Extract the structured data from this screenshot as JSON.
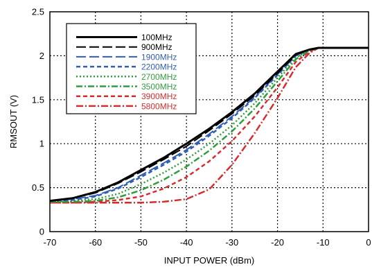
{
  "chart_data": {
    "type": "line",
    "title": "",
    "xlabel": "INPUT POWER (dBm)",
    "ylabel": "RMSOUT (V)",
    "xlim": [
      -70,
      0
    ],
    "ylim": [
      0,
      2.5
    ],
    "x_ticks": [
      -70,
      -60,
      -50,
      -40,
      -30,
      -20,
      -10,
      0
    ],
    "x_tick_labels": [
      "-70",
      "-60",
      "-50",
      "-40",
      "-30",
      "-20",
      "-10",
      "0"
    ],
    "y_ticks": [
      0,
      0.5,
      1,
      1.5,
      2,
      2.5
    ],
    "y_tick_labels": [
      "0",
      "0.5",
      "1",
      "1.5",
      "2",
      "2.5"
    ],
    "grid": true,
    "legend_position": "top-left",
    "series": [
      {
        "name": "100MHz",
        "color": "#000000",
        "dash": "",
        "width": 3,
        "points": [
          [
            -70,
            0.35
          ],
          [
            -65,
            0.38
          ],
          [
            -60,
            0.45
          ],
          [
            -55,
            0.56
          ],
          [
            -50,
            0.7
          ],
          [
            -45,
            0.84
          ],
          [
            -40,
            1.0
          ],
          [
            -35,
            1.17
          ],
          [
            -30,
            1.36
          ],
          [
            -25,
            1.57
          ],
          [
            -20,
            1.82
          ],
          [
            -16,
            2.02
          ],
          [
            -13,
            2.07
          ],
          [
            -11,
            2.09
          ],
          [
            -10,
            2.09
          ],
          [
            0,
            2.09
          ]
        ]
      },
      {
        "name": "900MHz",
        "color": "#000000",
        "dash": "14,5",
        "width": 2,
        "points": [
          [
            -70,
            0.35
          ],
          [
            -65,
            0.38
          ],
          [
            -60,
            0.44
          ],
          [
            -55,
            0.55
          ],
          [
            -50,
            0.68
          ],
          [
            -45,
            0.82
          ],
          [
            -40,
            0.97
          ],
          [
            -35,
            1.15
          ],
          [
            -30,
            1.34
          ],
          [
            -25,
            1.55
          ],
          [
            -20,
            1.8
          ],
          [
            -16,
            2.01
          ],
          [
            -13,
            2.07
          ],
          [
            -11,
            2.09
          ],
          [
            -10,
            2.09
          ],
          [
            0,
            2.09
          ]
        ]
      },
      {
        "name": "1900MHz",
        "color": "#2f5fb3",
        "dash": "14,5",
        "width": 2,
        "points": [
          [
            -70,
            0.35
          ],
          [
            -65,
            0.37
          ],
          [
            -60,
            0.41
          ],
          [
            -55,
            0.5
          ],
          [
            -50,
            0.64
          ],
          [
            -45,
            0.78
          ],
          [
            -40,
            0.93
          ],
          [
            -35,
            1.11
          ],
          [
            -30,
            1.31
          ],
          [
            -25,
            1.53
          ],
          [
            -20,
            1.79
          ],
          [
            -16,
            2.0
          ],
          [
            -13,
            2.07
          ],
          [
            -11,
            2.09
          ],
          [
            -10,
            2.09
          ],
          [
            0,
            2.09
          ]
        ]
      },
      {
        "name": "2200MHz",
        "color": "#2f5fb3",
        "dash": "6,4",
        "width": 2.5,
        "points": [
          [
            -70,
            0.35
          ],
          [
            -65,
            0.36
          ],
          [
            -60,
            0.4
          ],
          [
            -55,
            0.49
          ],
          [
            -50,
            0.62
          ],
          [
            -45,
            0.76
          ],
          [
            -40,
            0.91
          ],
          [
            -35,
            1.09
          ],
          [
            -30,
            1.29
          ],
          [
            -25,
            1.52
          ],
          [
            -20,
            1.78
          ],
          [
            -16,
            2.0
          ],
          [
            -13,
            2.07
          ],
          [
            -11,
            2.09
          ],
          [
            -10,
            2.09
          ],
          [
            0,
            2.09
          ]
        ]
      },
      {
        "name": "2700MHz",
        "color": "#2e9e3c",
        "dash": "2,3",
        "width": 2.5,
        "points": [
          [
            -70,
            0.34
          ],
          [
            -65,
            0.35
          ],
          [
            -60,
            0.37
          ],
          [
            -55,
            0.43
          ],
          [
            -50,
            0.54
          ],
          [
            -45,
            0.67
          ],
          [
            -40,
            0.82
          ],
          [
            -35,
            1.0
          ],
          [
            -30,
            1.21
          ],
          [
            -25,
            1.46
          ],
          [
            -20,
            1.75
          ],
          [
            -16,
            1.98
          ],
          [
            -13,
            2.06
          ],
          [
            -11,
            2.09
          ],
          [
            -10,
            2.09
          ],
          [
            0,
            2.09
          ]
        ]
      },
      {
        "name": "3500MHz",
        "color": "#2e9e3c",
        "dash": "9,3,2,3",
        "width": 2.5,
        "points": [
          [
            -70,
            0.34
          ],
          [
            -65,
            0.34
          ],
          [
            -60,
            0.35
          ],
          [
            -55,
            0.39
          ],
          [
            -50,
            0.47
          ],
          [
            -45,
            0.59
          ],
          [
            -40,
            0.74
          ],
          [
            -35,
            0.92
          ],
          [
            -30,
            1.14
          ],
          [
            -25,
            1.4
          ],
          [
            -20,
            1.71
          ],
          [
            -16,
            1.96
          ],
          [
            -13,
            2.06
          ],
          [
            -11,
            2.09
          ],
          [
            -10,
            2.09
          ],
          [
            0,
            2.09
          ]
        ]
      },
      {
        "name": "3900MHz",
        "color": "#d92b2b",
        "dash": "6,4",
        "width": 2.5,
        "points": [
          [
            -70,
            0.33
          ],
          [
            -65,
            0.33
          ],
          [
            -60,
            0.34
          ],
          [
            -55,
            0.36
          ],
          [
            -50,
            0.4
          ],
          [
            -45,
            0.49
          ],
          [
            -40,
            0.62
          ],
          [
            -35,
            0.8
          ],
          [
            -30,
            1.03
          ],
          [
            -25,
            1.31
          ],
          [
            -20,
            1.64
          ],
          [
            -16,
            1.93
          ],
          [
            -13,
            2.05
          ],
          [
            -11,
            2.09
          ],
          [
            -10,
            2.09
          ],
          [
            0,
            2.09
          ]
        ]
      },
      {
        "name": "5800MHz",
        "color": "#d92b2b",
        "dash": "10,3,2,3",
        "width": 2.5,
        "points": [
          [
            -70,
            0.33
          ],
          [
            -65,
            0.33
          ],
          [
            -60,
            0.33
          ],
          [
            -55,
            0.33
          ],
          [
            -50,
            0.33
          ],
          [
            -45,
            0.34
          ],
          [
            -40,
            0.37
          ],
          [
            -35,
            0.48
          ],
          [
            -30,
            0.76
          ],
          [
            -25,
            1.12
          ],
          [
            -20,
            1.52
          ],
          [
            -16,
            1.87
          ],
          [
            -13,
            2.03
          ],
          [
            -11,
            2.09
          ],
          [
            -10,
            2.09
          ],
          [
            0,
            2.09
          ]
        ]
      }
    ]
  }
}
